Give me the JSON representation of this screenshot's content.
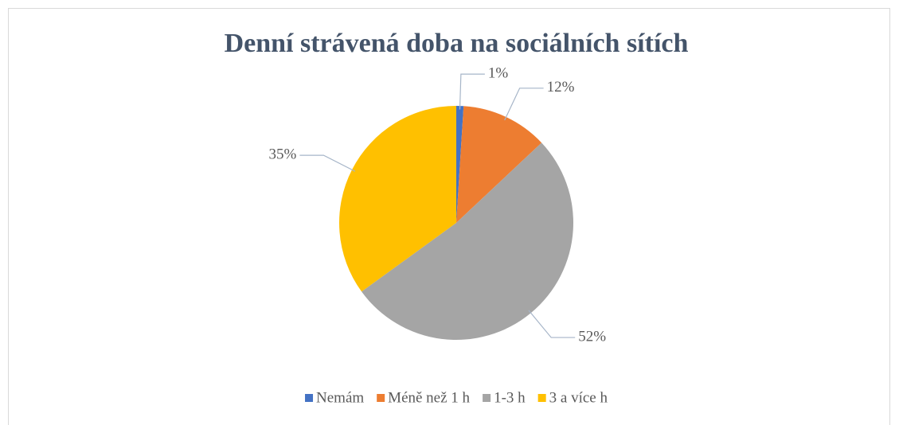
{
  "chart_data": {
    "type": "pie",
    "title": "Denní strávená doba na sociálních sítích",
    "categories": [
      "Nemám",
      "Méně než 1 h",
      "1-3 h",
      "3 a více h"
    ],
    "values": [
      1,
      12,
      52,
      35
    ],
    "value_labels": [
      "1%",
      "12%",
      "52%",
      "35%"
    ],
    "colors": [
      "#4472c4",
      "#ed7d31",
      "#a5a5a5",
      "#ffc000"
    ],
    "legend": "bottom"
  }
}
